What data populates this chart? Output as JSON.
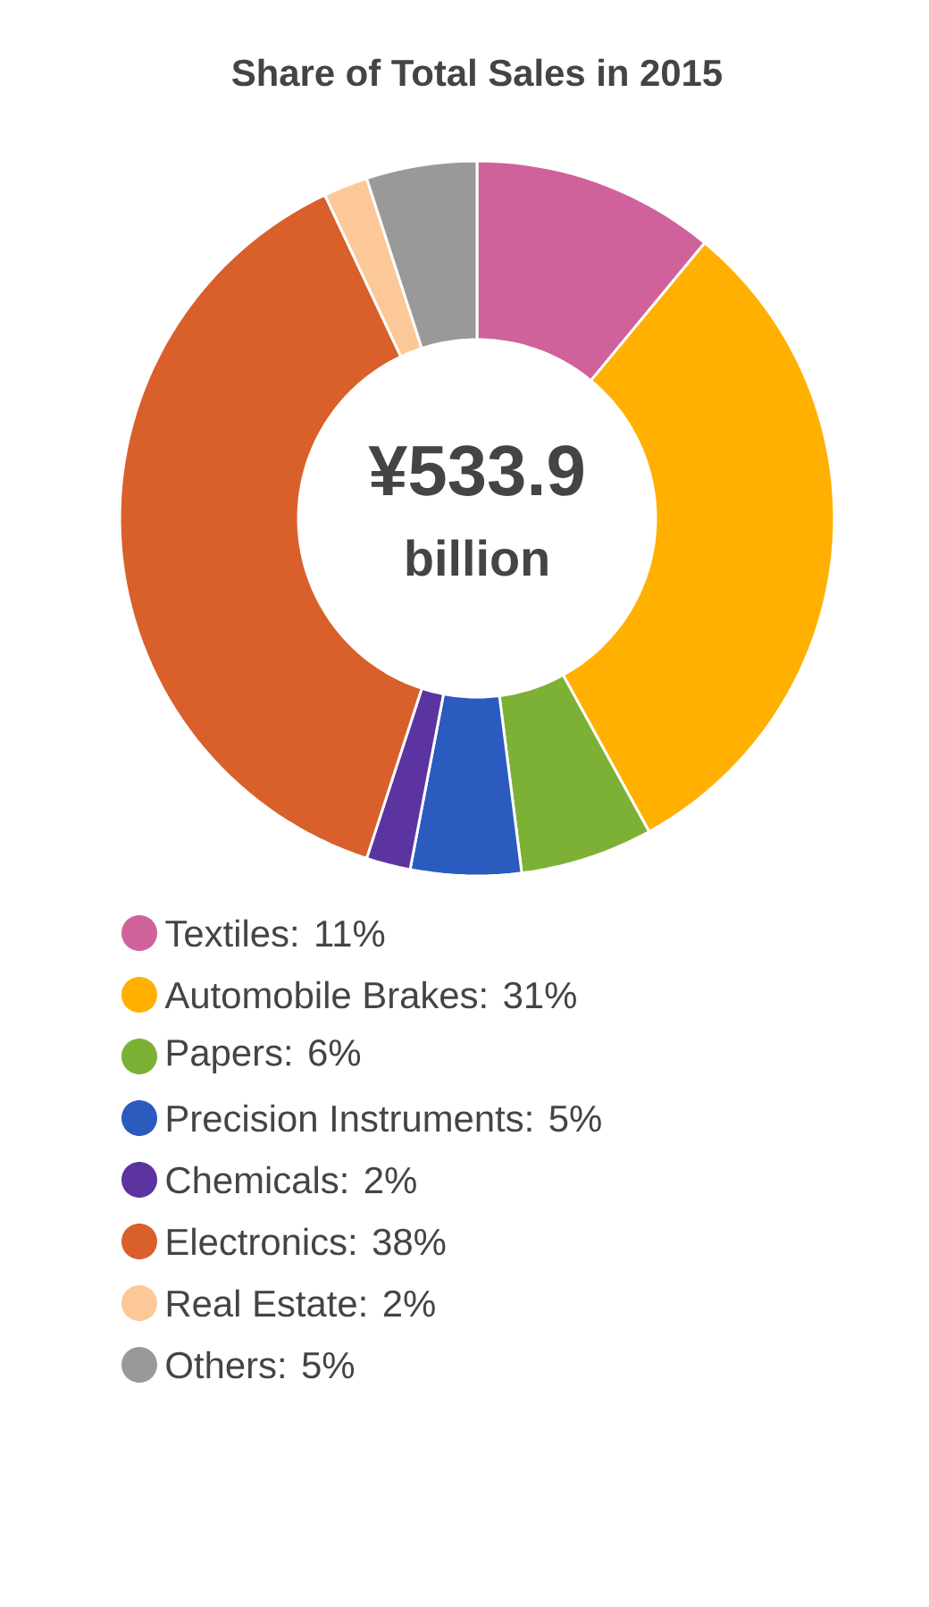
{
  "chart_data": {
    "type": "donut",
    "title": "Share of Total Sales in 2015",
    "annotations": [
      "¥533.9",
      "billion"
    ],
    "categories": [
      "Textiles: 11%",
      "Automobile Brakes: 31%",
      "Papers: 6%",
      "Precision Instruments: 5%",
      "Chemicals: 2%",
      "Electronics: 38%",
      "Real Estate: 2%",
      "Others: 5%"
    ],
    "values": [
      11,
      31,
      6,
      5,
      2,
      38,
      2,
      5
    ],
    "colors": [
      "#d0629b",
      "#ffb000",
      "#7cb135",
      "#2b5bbf",
      "#5b34a0",
      "#d95f2b",
      "#fdc897",
      "#999999"
    ],
    "legend": "bottom"
  }
}
